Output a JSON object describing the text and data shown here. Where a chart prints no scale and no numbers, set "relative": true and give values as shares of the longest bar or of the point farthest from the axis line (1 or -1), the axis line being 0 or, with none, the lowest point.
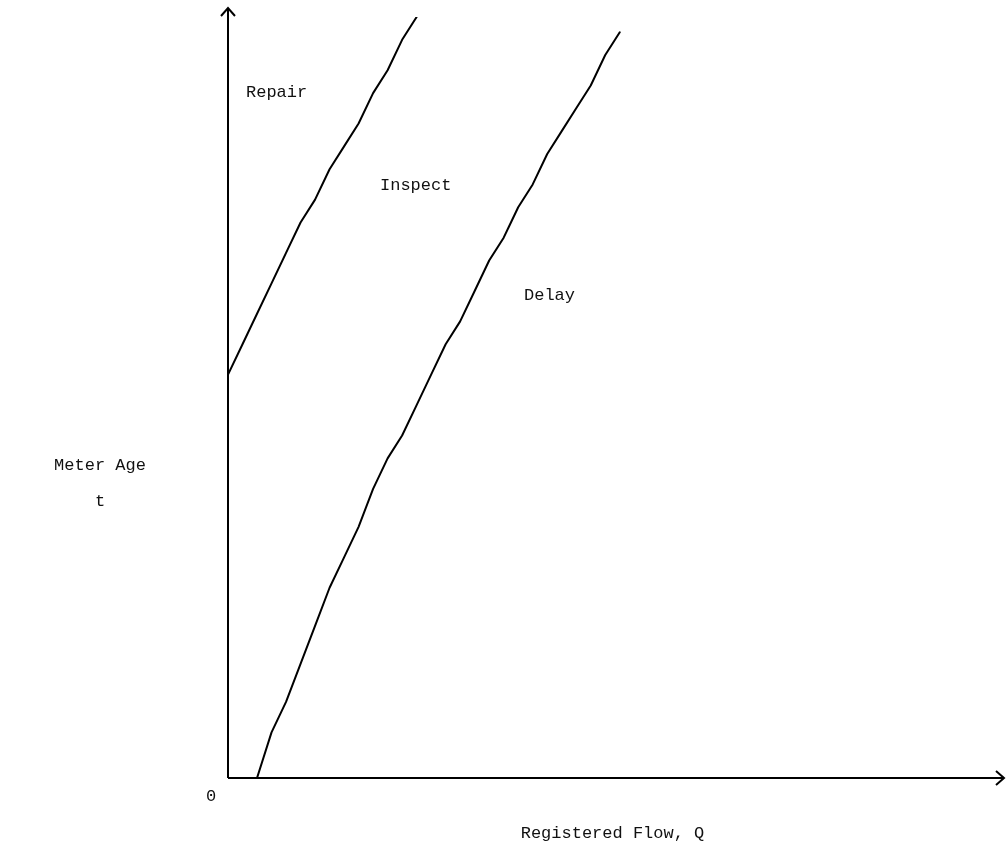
{
  "chart_data": {
    "type": "line",
    "relative": true,
    "xlabel": "Registered Flow, Q",
    "ylabel": "Meter Age\nt",
    "annotations": [
      "Repair",
      "Inspect",
      "Delay",
      "0"
    ],
    "categories": [
      null,
      null,
      null,
      null,
      null,
      null,
      null,
      null,
      null,
      null,
      null,
      null,
      null,
      null,
      null,
      null,
      null,
      null,
      null,
      null,
      null,
      null,
      null,
      null,
      null,
      null,
      null,
      null,
      null,
      null,
      null,
      null,
      null,
      null,
      null,
      null,
      null,
      null,
      null,
      null,
      null,
      null,
      null,
      null,
      null,
      null,
      null,
      null,
      null,
      null,
      null,
      null,
      null,
      null
    ],
    "series": [
      {
        "color": "#000000",
        "values": [
          0.53,
          0.57,
          0.61,
          0.65,
          0.69,
          0.73,
          0.76,
          0.8,
          0.83,
          0.86,
          0.9,
          0.93,
          0.97,
          1.0,
          null,
          null,
          null,
          null,
          null,
          null,
          null,
          null,
          null,
          null,
          null,
          null,
          null,
          null,
          null,
          null,
          null,
          null,
          null,
          null,
          null,
          null,
          null,
          null,
          null,
          null,
          null,
          null,
          null,
          null,
          null,
          null,
          null,
          null,
          null,
          null,
          null,
          null,
          null,
          null
        ]
      },
      {
        "color": "#000000",
        "values": [
          null,
          null,
          0.0,
          0.06,
          0.1,
          0.15,
          0.2,
          0.25,
          0.29,
          0.33,
          0.38,
          0.42,
          0.45,
          0.49,
          0.53,
          0.57,
          0.6,
          0.64,
          0.68,
          0.71,
          0.75,
          0.78,
          0.82,
          0.85,
          0.88,
          0.91,
          0.95,
          0.98,
          null,
          null,
          null,
          null,
          null,
          null,
          null,
          null,
          null,
          null,
          null,
          null,
          null,
          null,
          null,
          null,
          null,
          null,
          null,
          null,
          null,
          null,
          null,
          null,
          null,
          null
        ]
      }
    ]
  }
}
